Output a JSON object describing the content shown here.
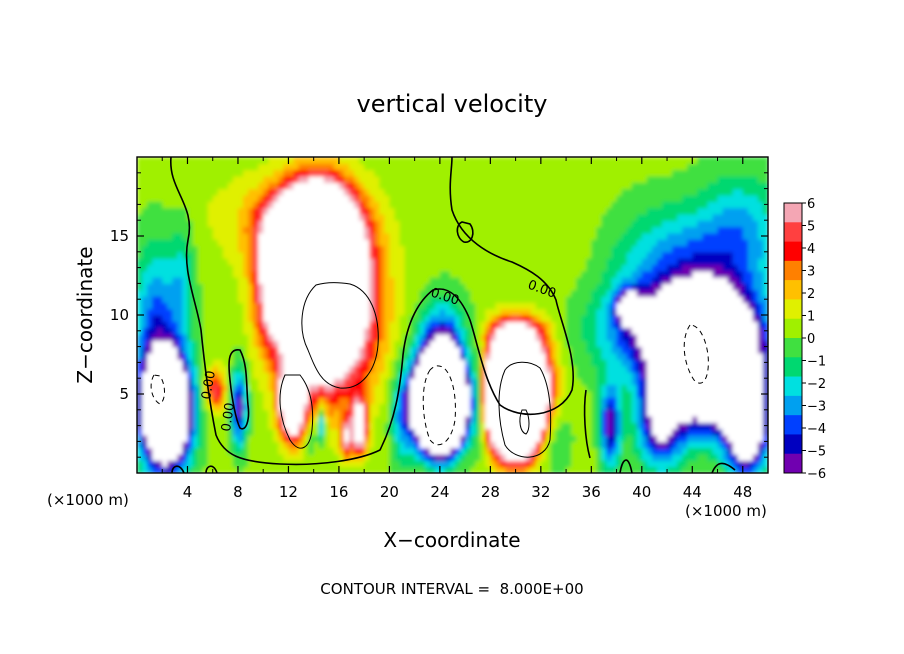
{
  "chart_data": {
    "type": "heatmap",
    "title": "vertical velocity",
    "xlabel": "X−coordinate",
    "ylabel": "Z−coordinate",
    "x_unit_label": "(×1000 m)",
    "xlim": [
      0,
      50
    ],
    "ylim": [
      0,
      20
    ],
    "x_ticks": [
      "4",
      "8",
      "12",
      "16",
      "20",
      "24",
      "28",
      "32",
      "36",
      "40",
      "44",
      "48"
    ],
    "y_ticks": [
      "5",
      "10",
      "15"
    ],
    "colorbar": {
      "range": [
        -6,
        6
      ],
      "labels": [
        "6",
        "5",
        "4",
        "3",
        "2",
        "1",
        "0",
        "−1",
        "−2",
        "−3",
        "−4",
        "−5",
        "−6"
      ],
      "colors": [
        "#f4a6b4",
        "#ff4040",
        "#ff0000",
        "#ff8000",
        "#ffc000",
        "#e0f000",
        "#a0f000",
        "#40e040",
        "#00d870",
        "#00e0e0",
        "#00a0f0",
        "#0040ff",
        "#0000c0",
        "#7000b0"
      ],
      "over_color": "#ffffff",
      "under_color": "#ffffff"
    },
    "contour_labels": [
      "0.00",
      "0.00",
      "0.00",
      "0.00"
    ],
    "footer": "CONTOUR INTERVAL =  8.000E+00"
  }
}
